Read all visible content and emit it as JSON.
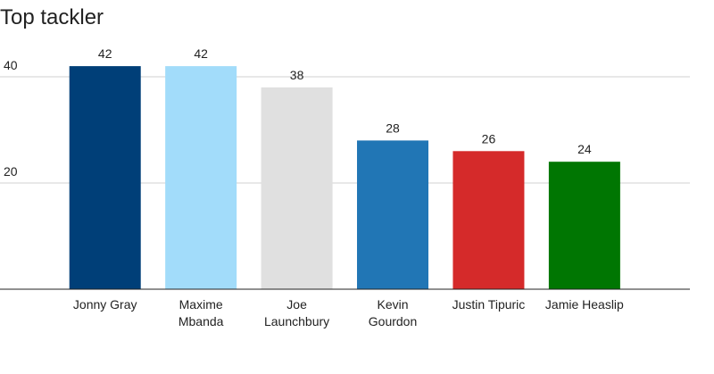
{
  "chart_data": {
    "type": "bar",
    "title": "Top tackler",
    "categories": [
      "Jonny Gray",
      "Maxime Mbanda",
      "Joe Launchbury",
      "Kevin Gourdon",
      "Justin Tipuric",
      "Jamie Heaslip"
    ],
    "values": [
      42,
      42,
      38,
      28,
      26,
      24
    ],
    "colors": [
      "#003f78",
      "#a2dcfa",
      "#e0e0e0",
      "#2176b5",
      "#d52a2a",
      "#007602"
    ],
    "ylim": [
      0,
      50
    ],
    "yticks": [
      20,
      40
    ],
    "grid": true
  }
}
